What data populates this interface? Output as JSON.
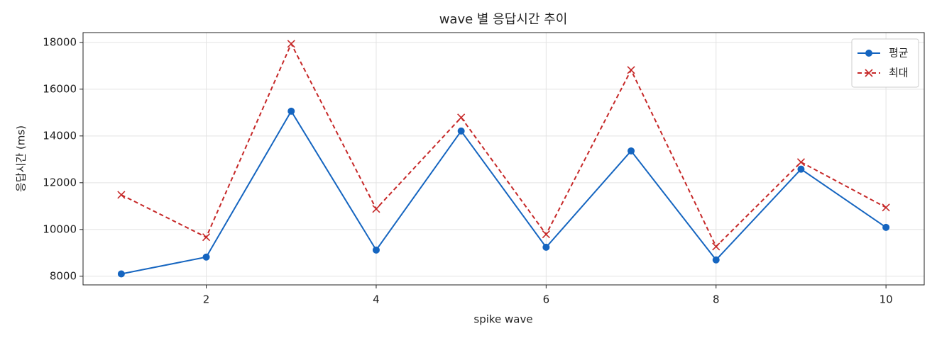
{
  "chart_data": {
    "type": "line",
    "title": "wave 별 응답시간 추이",
    "x_label": "spike wave",
    "y_label": "응답시간 (ms)",
    "x": [
      1,
      2,
      3,
      4,
      5,
      6,
      7,
      8,
      9,
      10
    ],
    "series": [
      {
        "name": "평균",
        "color": "#1565c0",
        "marker": "o",
        "linestyle": "solid",
        "values": [
          8100,
          8820,
          15060,
          9120,
          14210,
          9240,
          13360,
          8700,
          12580,
          10090
        ]
      },
      {
        "name": "최대",
        "color": "#c62828",
        "marker": "x",
        "linestyle": "dashed",
        "values": [
          11480,
          9670,
          17940,
          10880,
          14790,
          9790,
          16820,
          9270,
          12880,
          10940
        ]
      }
    ],
    "xlim": [
      0.55,
      10.45
    ],
    "ylim": [
      7630,
      18420
    ],
    "xticks": [
      2,
      4,
      6,
      8,
      10
    ],
    "yticks": [
      8000,
      10000,
      12000,
      14000,
      16000,
      18000
    ],
    "grid": true,
    "legend": "upper right"
  }
}
